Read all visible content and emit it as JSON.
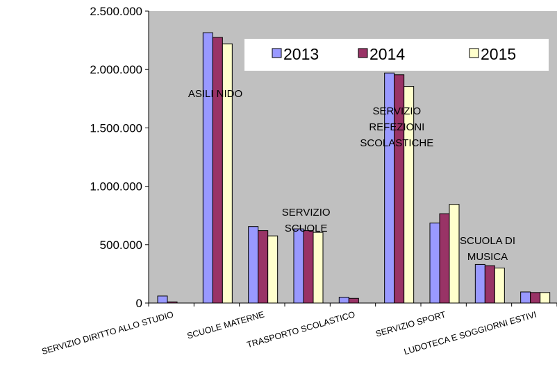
{
  "chart_data": {
    "type": "bar",
    "categories": [
      "SERVIZIO DIRITTO ALLO STUDIO",
      "ASILI NIDO",
      "SCUOLE MATERNE",
      "SERVIZIO SCUOLE",
      "TRASPORTO SCOLASTICO",
      "SERVIZIO REFEZIONI SCOLASTICHE",
      "SERVIZIO SPORT",
      "SCUOLA DI MUSICA",
      "LUDOTECA E SOGGIORNI ESTIVI"
    ],
    "x_tick_labels": [
      "SERVIZIO DIRITTO ALLO STUDIO",
      "",
      "SCUOLE MATERNE",
      "",
      "TRASPORTO SCOLASTICO",
      "",
      "SERVIZIO SPORT",
      "",
      "LUDOTECA E SOGGIORNI ESTIVI"
    ],
    "annotations": [
      {
        "category_index": 1,
        "lines": [
          "ASILI NIDO"
        ]
      },
      {
        "category_index": 3,
        "lines": [
          "SERVIZIO",
          "SCUOLE"
        ]
      },
      {
        "category_index": 5,
        "lines": [
          "SERVIZIO",
          "REFEZIONI",
          "SCOLASTICHE"
        ]
      },
      {
        "category_index": 7,
        "lines": [
          "SCUOLA DI",
          "MUSICA"
        ]
      }
    ],
    "series": [
      {
        "name": "2013",
        "color": "#9999ff",
        "values": [
          60000,
          2315000,
          655000,
          635000,
          50000,
          1970000,
          685000,
          330000,
          95000
        ]
      },
      {
        "name": "2014",
        "color": "#993366",
        "values": [
          10000,
          2275000,
          620000,
          620000,
          40000,
          1955000,
          765000,
          320000,
          90000
        ]
      },
      {
        "name": "2015",
        "color": "#ffffcc",
        "values": [
          0,
          2220000,
          575000,
          605000,
          0,
          1855000,
          845000,
          300000,
          90000
        ]
      }
    ],
    "ylim": [
      0,
      2500000
    ],
    "y_ticks": [
      0,
      500000,
      1000000,
      1500000,
      2000000,
      2500000
    ],
    "y_tick_labels": [
      "0",
      "500.000",
      "1.000.000",
      "1.500.000",
      "2.000.000",
      "2.500.000"
    ],
    "grid": false,
    "legend_position": "top-right",
    "plot_background": "#c0c0c0",
    "title": "",
    "xlabel": "",
    "ylabel": ""
  }
}
